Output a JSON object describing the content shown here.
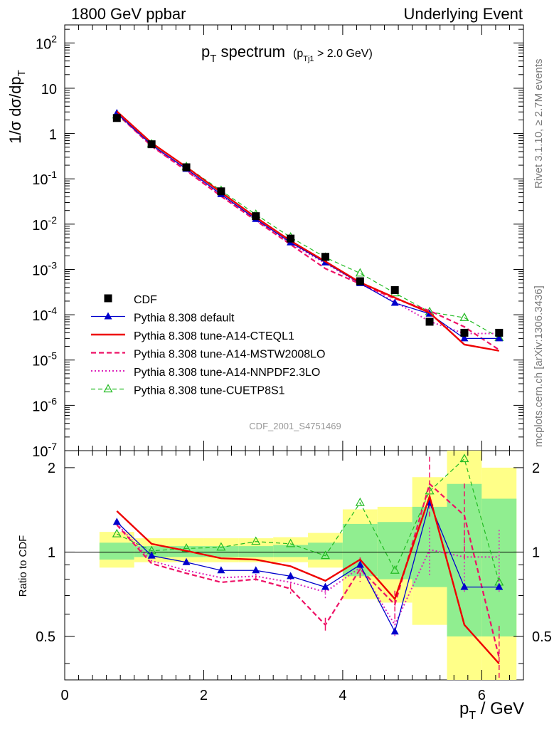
{
  "header": {
    "left": "1800 GeV ppbar",
    "right": "Underlying Event"
  },
  "plot_title": {
    "main": "p",
    "main_sub": "T",
    "main_tail": " spectrum",
    "cut_open": "(p",
    "cut_sub": "Tj1",
    "cut_tail": " > 2.0 GeV)"
  },
  "side_text": {
    "rivet": "Rivet 3.1.10, ≥ 2.7M events",
    "mcplots": "mcplots.cern.ch [arXiv:1306.3436]"
  },
  "watermark": "CDF_2001_S4751469",
  "axes": {
    "ylabel_top": "1/σ dσ/dp",
    "ylabel_top_sub": "T",
    "ylabel_bottom": "Ratio to CDF",
    "xlabel": "p",
    "xlabel_sub": "T",
    "xlabel_tail": " / GeV"
  },
  "colors": {
    "cdf": "#000000",
    "default": "#0000cc",
    "a14cteq": "#ee0000",
    "a14mstw": "#ee1166",
    "a14nnpdf": "#dd22bb",
    "cuetp8s1": "#22bb22",
    "band_inner": "#90ee90",
    "band_outer": "#ffff88"
  },
  "legend": [
    {
      "key": "cdf",
      "label": "CDF"
    },
    {
      "key": "default",
      "label": "Pythia 8.308 default"
    },
    {
      "key": "a14cteq",
      "label": "Pythia 8.308 tune-A14-CTEQL1"
    },
    {
      "key": "a14mstw",
      "label": "Pythia 8.308 tune-A14-MSTW2008LO"
    },
    {
      "key": "a14nnpdf",
      "label": "Pythia 8.308 tune-A14-NNPDF2.3LO"
    },
    {
      "key": "cuetp8s1",
      "label": "Pythia 8.308 tune-CUETP8S1"
    }
  ],
  "chart_data": {
    "type": "line",
    "yscale": "log",
    "xlim": [
      0,
      6.6
    ],
    "ylim": [
      1e-07,
      250
    ],
    "ratio_ylim": [
      0.35,
      2.3
    ],
    "x_ticks": [
      0,
      2,
      4,
      6
    ],
    "x_tick_labels": [
      "0",
      "2",
      "4",
      "6"
    ],
    "y_ticks": [
      "10^2",
      "10",
      "1",
      "10^-1",
      "10^-2",
      "10^-3",
      "10^-4",
      "10^-5",
      "10^-6",
      "10^-7"
    ],
    "ratio_ticks": [
      0.5,
      1,
      2
    ],
    "ratio_tick_labels": [
      "0.5",
      "1",
      "2"
    ],
    "x": [
      0.75,
      1.25,
      1.75,
      2.25,
      2.75,
      3.25,
      3.75,
      4.25,
      4.75,
      5.25,
      5.75,
      6.25
    ],
    "cdf": [
      2.2,
      0.58,
      0.18,
      0.053,
      0.015,
      0.0048,
      0.0019,
      0.00055,
      0.00035,
      7e-05,
      4e-05,
      4e-05
    ],
    "series": [
      {
        "key": "default",
        "name": "Pythia 8.308 default",
        "ratio": [
          1.28,
          0.97,
          0.92,
          0.86,
          0.86,
          0.82,
          0.75,
          0.9,
          0.52,
          1.5,
          0.75,
          0.75
        ]
      },
      {
        "key": "a14cteq",
        "name": "Pythia 8.308 tune-A14-CTEQL1",
        "ratio": [
          1.4,
          1.07,
          1.01,
          0.95,
          0.94,
          0.89,
          0.79,
          0.94,
          0.68,
          1.58,
          0.55,
          0.4
        ]
      },
      {
        "key": "a14mstw",
        "name": "Pythia 8.308 tune-A14-MSTW2008LO",
        "ratio": [
          1.25,
          0.91,
          0.84,
          0.78,
          0.8,
          0.74,
          0.55,
          0.87,
          0.65,
          1.75,
          1.35,
          0.42
        ]
      },
      {
        "key": "a14nnpdf",
        "name": "Pythia 8.308 tune-A14-NNPDF2.3LO",
        "ratio": [
          1.26,
          0.93,
          0.86,
          0.81,
          0.82,
          0.78,
          0.72,
          0.88,
          0.55,
          1.02,
          0.96,
          0.96
        ]
      },
      {
        "key": "cuetp8s1",
        "name": "Pythia 8.308 tune-CUETP8S1",
        "ratio": [
          1.16,
          1.01,
          1.03,
          1.04,
          1.09,
          1.07,
          0.97,
          1.5,
          0.86,
          1.65,
          2.15,
          0.78
        ]
      }
    ],
    "ratio_error": {
      "a14mstw": [
        0,
        0,
        0,
        0,
        0.03,
        0.04,
        0.06,
        0.1,
        0.12,
        0.25,
        0.3,
        0.3
      ],
      "a14nnpdf": [
        0,
        0,
        0,
        0,
        0.02,
        0.03,
        0.05,
        0.08,
        0.1,
        0.2,
        0.25,
        0.25
      ]
    },
    "bands": {
      "edges": [
        0.5,
        1.0,
        1.5,
        2.0,
        2.5,
        3.0,
        3.5,
        4.0,
        4.5,
        5.0,
        5.5,
        6.0,
        6.5
      ],
      "outer_low": [
        0.88,
        0.92,
        0.92,
        0.92,
        0.92,
        0.92,
        0.88,
        0.68,
        0.66,
        0.55,
        0.35,
        0.35
      ],
      "outer_high": [
        1.18,
        1.12,
        1.12,
        1.12,
        1.12,
        1.13,
        1.17,
        1.42,
        1.45,
        1.85,
        2.3,
        2.0
      ],
      "inner_low": [
        0.94,
        0.96,
        0.96,
        0.96,
        0.96,
        0.96,
        0.94,
        0.82,
        0.8,
        0.75,
        0.5,
        0.5
      ],
      "inner_high": [
        1.08,
        1.05,
        1.05,
        1.05,
        1.05,
        1.06,
        1.08,
        1.26,
        1.28,
        1.45,
        1.75,
        1.55
      ]
    }
  }
}
